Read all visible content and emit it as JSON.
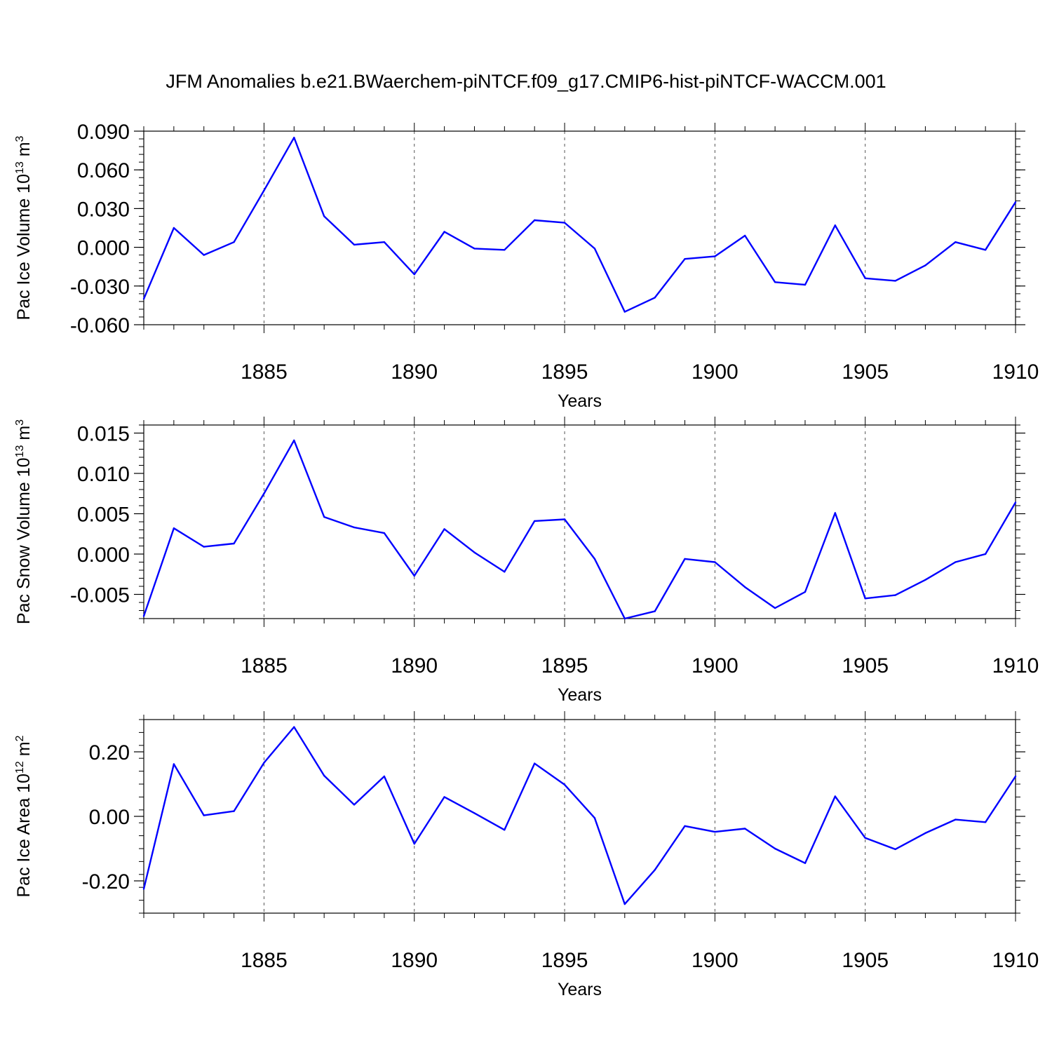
{
  "title": "JFM Anomalies b.e21.BWaerchem-piNTCF.f09_g17.CMIP6-hist-piNTCF-WACCM.001",
  "line_color": "#0000ff",
  "chart_data": [
    {
      "type": "line",
      "title": "",
      "xlabel": "Years",
      "ylabel_main": "Pac Ice Volume 10",
      "ylabel_sup": "13",
      "ylabel_unit": " m",
      "ylabel_unit_sup": "3",
      "xlim": [
        1881,
        1910
      ],
      "ylim": [
        -0.06,
        0.09
      ],
      "xticks": [
        "1885",
        "1890",
        "1895",
        "1900",
        "1905",
        "1910"
      ],
      "yticks": [
        "-0.060",
        "-0.030",
        "0.000",
        "0.030",
        "0.060",
        "0.090"
      ],
      "grid": "vertical dashed lines at major x ticks",
      "series": [
        {
          "x": [
            1881,
            1882,
            1883,
            1884,
            1885,
            1886,
            1887,
            1888,
            1889,
            1890,
            1891,
            1892,
            1893,
            1894,
            1895,
            1896,
            1897,
            1898,
            1899,
            1900,
            1901,
            1902,
            1903,
            1904,
            1905,
            1906,
            1907,
            1908,
            1909,
            1910
          ],
          "values": [
            -0.04,
            0.015,
            -0.006,
            0.004,
            0.044,
            0.085,
            0.024,
            0.002,
            0.004,
            -0.021,
            0.012,
            -0.001,
            -0.002,
            0.021,
            0.019,
            -0.001,
            -0.05,
            -0.039,
            -0.009,
            -0.007,
            0.009,
            -0.027,
            -0.029,
            0.017,
            -0.024,
            -0.026,
            -0.014,
            0.004,
            -0.002,
            0.035
          ]
        }
      ]
    },
    {
      "type": "line",
      "title": "",
      "xlabel": "Years",
      "ylabel_main": "Pac Snow Volume 10",
      "ylabel_sup": "13",
      "ylabel_unit": " m",
      "ylabel_unit_sup": "3",
      "xlim": [
        1881,
        1910
      ],
      "ylim": [
        -0.008,
        0.016
      ],
      "xticks": [
        "1885",
        "1890",
        "1895",
        "1900",
        "1905",
        "1910"
      ],
      "yticks": [
        "-0.005",
        "0.000",
        "0.005",
        "0.010",
        "0.015"
      ],
      "grid": "vertical dashed lines at major x ticks",
      "series": [
        {
          "x": [
            1881,
            1882,
            1883,
            1884,
            1885,
            1886,
            1887,
            1888,
            1889,
            1890,
            1891,
            1892,
            1893,
            1894,
            1895,
            1896,
            1897,
            1898,
            1899,
            1900,
            1901,
            1902,
            1903,
            1904,
            1905,
            1906,
            1907,
            1908,
            1909,
            1910
          ],
          "values": [
            -0.0077,
            0.0032,
            0.0009,
            0.0013,
            0.0075,
            0.0141,
            0.0046,
            0.0033,
            0.0026,
            -0.0027,
            0.0031,
            0.0002,
            -0.0022,
            0.0041,
            0.0043,
            -0.0006,
            -0.008,
            -0.0071,
            -0.0006,
            -0.001,
            -0.0041,
            -0.0067,
            -0.0047,
            0.0051,
            -0.0055,
            -0.0051,
            -0.0032,
            -0.001,
            0.0,
            0.0064
          ]
        }
      ]
    },
    {
      "type": "line",
      "title": "",
      "xlabel": "Years",
      "ylabel_main": "Pac Ice Area 10",
      "ylabel_sup": "12",
      "ylabel_unit": " m",
      "ylabel_unit_sup": "2",
      "xlim": [
        1881,
        1910
      ],
      "ylim": [
        -0.3,
        0.3
      ],
      "xticks": [
        "1885",
        "1890",
        "1895",
        "1900",
        "1905",
        "1910"
      ],
      "yticks": [
        "-0.20",
        "0.00",
        "0.20"
      ],
      "grid": "vertical dashed lines at major x ticks",
      "series": [
        {
          "x": [
            1881,
            1882,
            1883,
            1884,
            1885,
            1886,
            1887,
            1888,
            1889,
            1890,
            1891,
            1892,
            1893,
            1894,
            1895,
            1896,
            1897,
            1898,
            1899,
            1900,
            1901,
            1902,
            1903,
            1904,
            1905,
            1906,
            1907,
            1908,
            1909,
            1910
          ],
          "values": [
            -0.225,
            0.162,
            0.003,
            0.016,
            0.166,
            0.277,
            0.126,
            0.036,
            0.124,
            -0.085,
            0.06,
            0.01,
            -0.042,
            0.164,
            0.098,
            -0.005,
            -0.272,
            -0.166,
            -0.03,
            -0.048,
            -0.038,
            -0.1,
            -0.145,
            0.062,
            -0.067,
            -0.102,
            -0.052,
            -0.01,
            -0.018,
            0.124
          ]
        }
      ]
    }
  ]
}
